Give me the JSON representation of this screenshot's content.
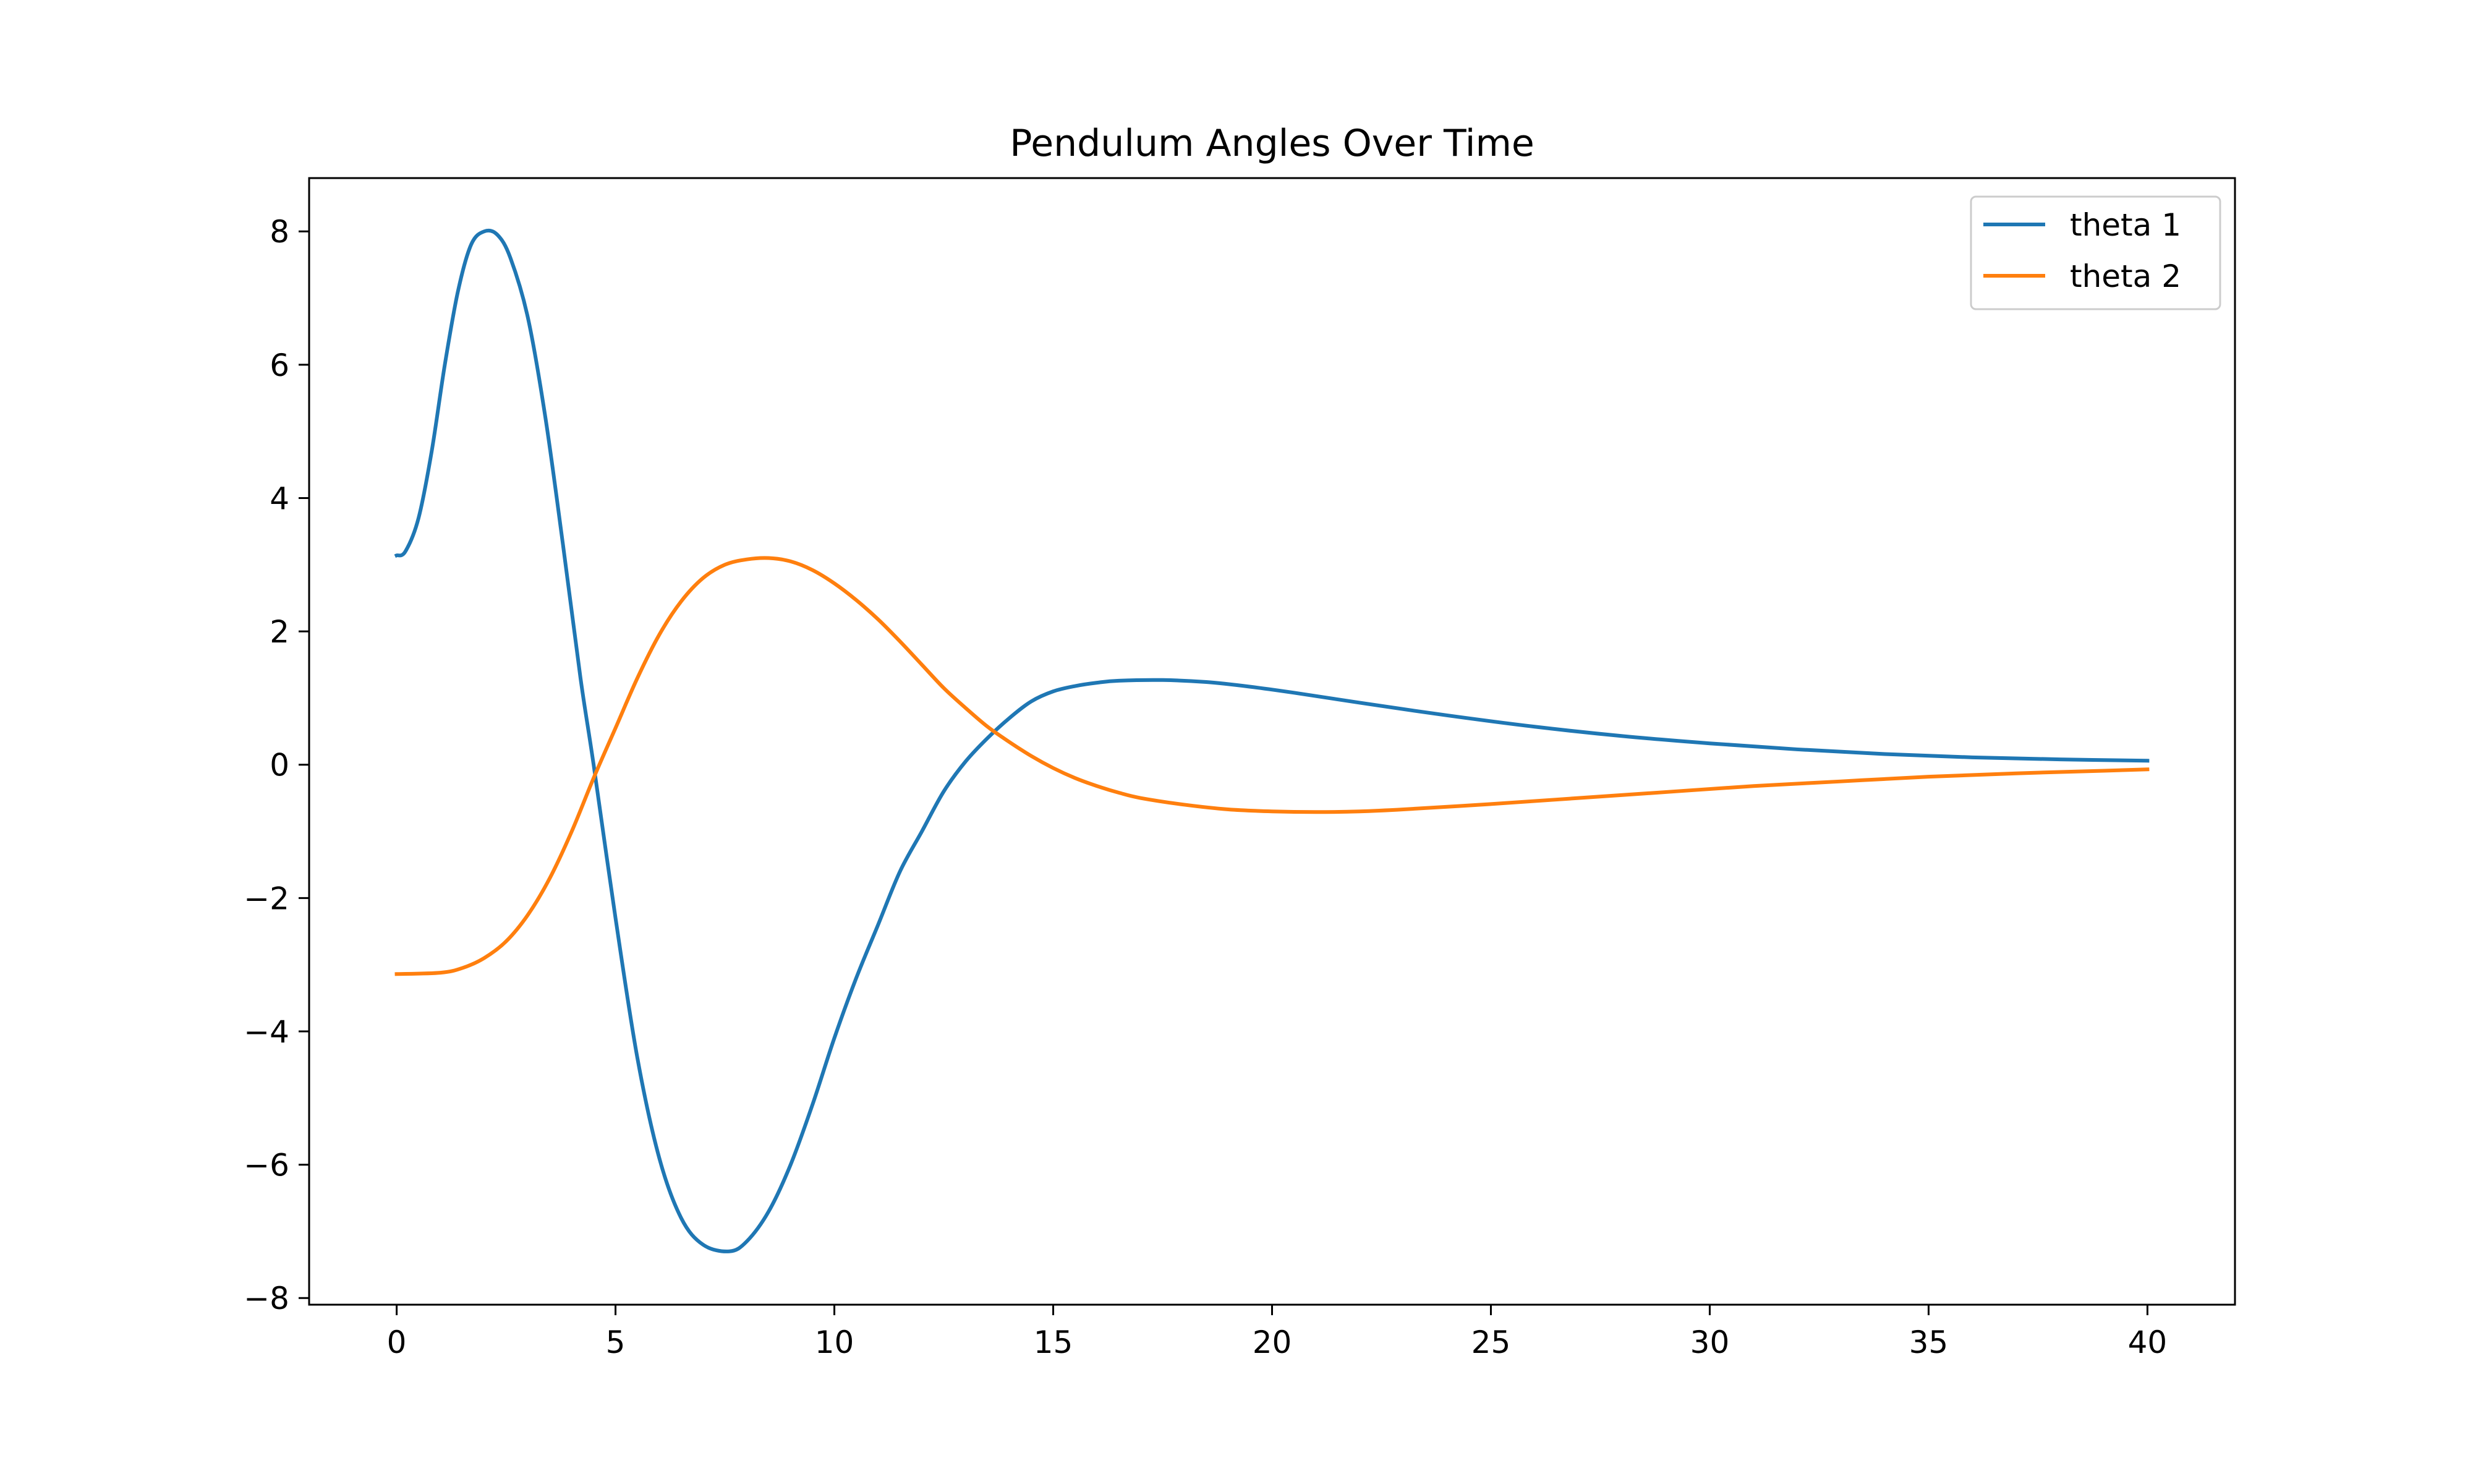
{
  "chart_data": {
    "type": "line",
    "title": "Pendulum Angles Over Time",
    "xlabel": "",
    "ylabel": "",
    "xlim": [
      -2,
      42
    ],
    "ylim": [
      -8.1,
      8.8
    ],
    "x_ticks": [
      0,
      5,
      10,
      15,
      20,
      25,
      30,
      35,
      40
    ],
    "x_tick_labels": [
      "0",
      "5",
      "10",
      "15",
      "20",
      "25",
      "30",
      "35",
      "40"
    ],
    "y_ticks": [
      8,
      6,
      4,
      2,
      0,
      -2,
      -4,
      -6,
      -8
    ],
    "y_tick_labels": [
      "8",
      "6",
      "4",
      "2",
      "0",
      "−2",
      "−4",
      "−6",
      "−8"
    ],
    "grid": false,
    "legend_position": "top-right",
    "series": [
      {
        "name": "theta 1",
        "color": "#1f77b4",
        "points": [
          [
            0,
            3.14
          ],
          [
            0.2,
            3.2
          ],
          [
            0.5,
            3.7
          ],
          [
            0.8,
            4.7
          ],
          [
            1.1,
            6.0
          ],
          [
            1.4,
            7.1
          ],
          [
            1.7,
            7.8
          ],
          [
            2.0,
            8.0
          ],
          [
            2.3,
            7.95
          ],
          [
            2.6,
            7.6
          ],
          [
            3.0,
            6.7
          ],
          [
            3.4,
            5.2
          ],
          [
            3.8,
            3.3
          ],
          [
            4.2,
            1.3
          ],
          [
            4.5,
            0.0
          ],
          [
            5.0,
            -2.3
          ],
          [
            5.5,
            -4.4
          ],
          [
            6.0,
            -5.9
          ],
          [
            6.5,
            -6.8
          ],
          [
            7.0,
            -7.2
          ],
          [
            7.6,
            -7.3
          ],
          [
            8.0,
            -7.15
          ],
          [
            8.5,
            -6.7
          ],
          [
            9.0,
            -6.0
          ],
          [
            9.5,
            -5.1
          ],
          [
            10.0,
            -4.1
          ],
          [
            10.5,
            -3.2
          ],
          [
            11.0,
            -2.4
          ],
          [
            11.5,
            -1.6
          ],
          [
            12.0,
            -1.0
          ],
          [
            12.5,
            -0.4
          ],
          [
            13.0,
            0.05
          ],
          [
            13.5,
            0.4
          ],
          [
            14.0,
            0.7
          ],
          [
            14.5,
            0.95
          ],
          [
            15.0,
            1.1
          ],
          [
            15.5,
            1.18
          ],
          [
            16.0,
            1.23
          ],
          [
            16.5,
            1.26
          ],
          [
            17.5,
            1.27
          ],
          [
            18.5,
            1.24
          ],
          [
            19.5,
            1.17
          ],
          [
            20.5,
            1.08
          ],
          [
            22.0,
            0.93
          ],
          [
            24.0,
            0.74
          ],
          [
            26.0,
            0.57
          ],
          [
            28.0,
            0.43
          ],
          [
            30.0,
            0.32
          ],
          [
            32.0,
            0.23
          ],
          [
            34.0,
            0.16
          ],
          [
            36.0,
            0.11
          ],
          [
            38.0,
            0.08
          ],
          [
            40.0,
            0.06
          ]
        ]
      },
      {
        "name": "theta 2",
        "color": "#ff7f0e",
        "points": [
          [
            0,
            -3.14
          ],
          [
            1.0,
            -3.12
          ],
          [
            1.5,
            -3.05
          ],
          [
            2.0,
            -2.9
          ],
          [
            2.5,
            -2.65
          ],
          [
            3.0,
            -2.25
          ],
          [
            3.5,
            -1.7
          ],
          [
            4.0,
            -1.0
          ],
          [
            4.5,
            -0.2
          ],
          [
            5.0,
            0.55
          ],
          [
            5.5,
            1.3
          ],
          [
            6.0,
            1.95
          ],
          [
            6.5,
            2.45
          ],
          [
            7.0,
            2.8
          ],
          [
            7.5,
            3.0
          ],
          [
            8.0,
            3.08
          ],
          [
            8.5,
            3.1
          ],
          [
            9.0,
            3.05
          ],
          [
            9.5,
            2.92
          ],
          [
            10.0,
            2.72
          ],
          [
            10.5,
            2.47
          ],
          [
            11.0,
            2.18
          ],
          [
            11.5,
            1.85
          ],
          [
            12.0,
            1.5
          ],
          [
            12.5,
            1.15
          ],
          [
            13.0,
            0.85
          ],
          [
            13.5,
            0.57
          ],
          [
            14.0,
            0.34
          ],
          [
            14.5,
            0.13
          ],
          [
            15.0,
            -0.05
          ],
          [
            15.5,
            -0.2
          ],
          [
            16.0,
            -0.32
          ],
          [
            16.5,
            -0.42
          ],
          [
            17.0,
            -0.5
          ],
          [
            18.0,
            -0.6
          ],
          [
            19.0,
            -0.67
          ],
          [
            20.0,
            -0.7
          ],
          [
            21.0,
            -0.71
          ],
          [
            22.0,
            -0.7
          ],
          [
            23.0,
            -0.67
          ],
          [
            25.0,
            -0.59
          ],
          [
            27.0,
            -0.5
          ],
          [
            29.0,
            -0.41
          ],
          [
            31.0,
            -0.32
          ],
          [
            33.0,
            -0.25
          ],
          [
            35.0,
            -0.18
          ],
          [
            37.0,
            -0.13
          ],
          [
            39.0,
            -0.09
          ],
          [
            40.0,
            -0.07
          ]
        ]
      }
    ]
  }
}
